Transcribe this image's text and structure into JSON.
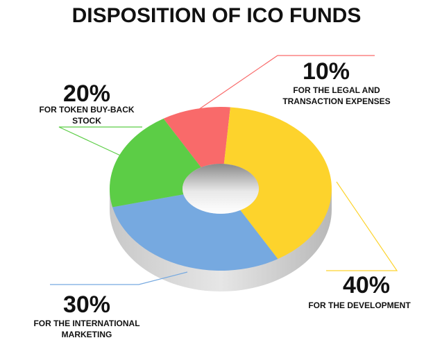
{
  "chart_data": {
    "type": "pie",
    "title": "DISPOSITION OF ICO FUNDS",
    "categories": [
      "FOR THE LEGAL AND TRANSACTION EXPENSES",
      "FOR THE DEVELOPMENT",
      "FOR THE INTERNATIONAL MARKETING",
      "FOR TOKEN BUY-BACK STOCK"
    ],
    "values": [
      10,
      40,
      30,
      20
    ],
    "value_labels": [
      "10%",
      "40%",
      "30%",
      "20%"
    ],
    "colors": [
      "#f96a6a",
      "#fdd32c",
      "#76a9e0",
      "#5ccd46"
    ]
  }
}
